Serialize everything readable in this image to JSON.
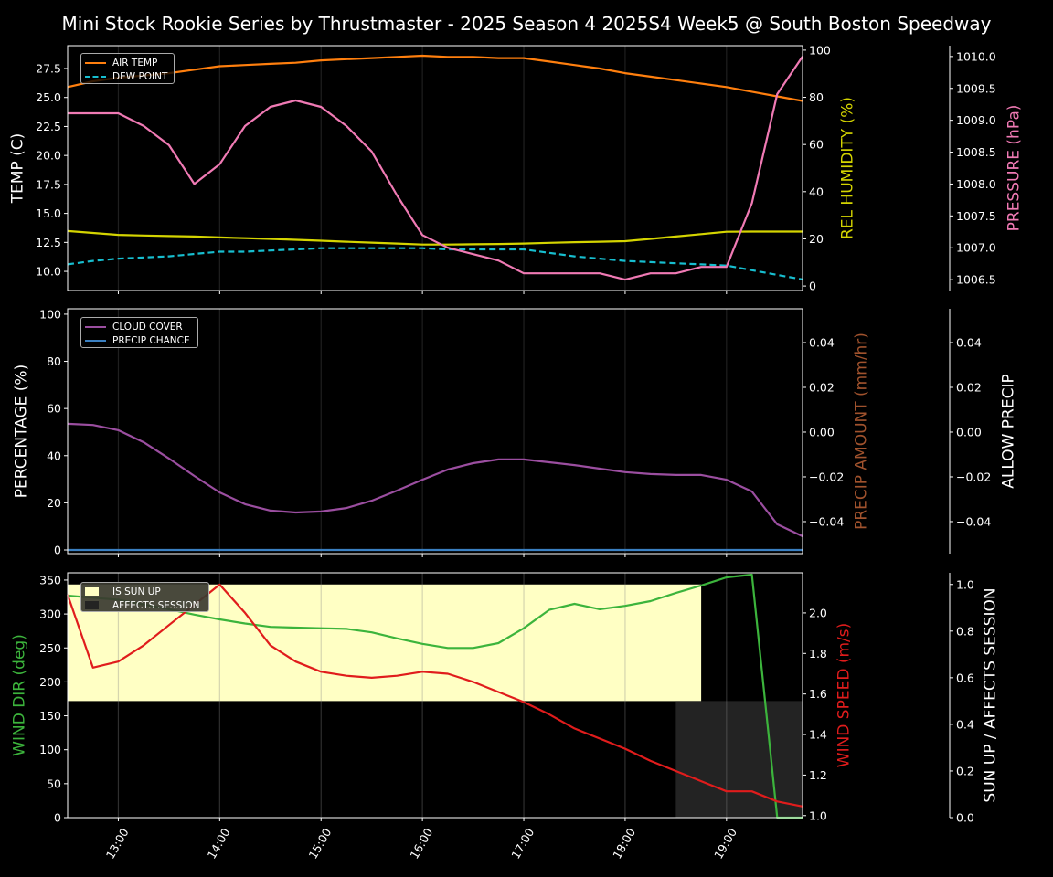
{
  "chart_data": {
    "title": "Mini Stock Rookie Series by Thrustmaster - 2025 Season 4 2025S4 Week5 @ South Boston Speedway",
    "type": "line",
    "x": [
      "12:30",
      "12:45",
      "13:00",
      "13:15",
      "13:30",
      "13:45",
      "14:00",
      "14:15",
      "14:30",
      "14:45",
      "15:00",
      "15:15",
      "15:30",
      "15:45",
      "16:00",
      "16:15",
      "16:30",
      "16:45",
      "17:00",
      "17:15",
      "17:30",
      "17:45",
      "18:00",
      "18:15",
      "18:30",
      "18:45",
      "19:00",
      "19:15",
      "19:30",
      "19:45"
    ],
    "xlim": [
      "12:30",
      "19:45"
    ],
    "xticks": [
      "13:00",
      "14:00",
      "15:00",
      "16:00",
      "17:00",
      "18:00",
      "19:00"
    ],
    "grid": "vertical at hours",
    "background": "#000000",
    "axes": [
      {
        "id": "temp",
        "panel": 0,
        "side": "left",
        "label": "TEMP (C)",
        "color": "#ffffff",
        "ylim": [
          8.35,
          29.47
        ],
        "ticks": [
          10,
          12.5,
          15,
          17.5,
          20,
          22.5,
          25,
          27.5
        ],
        "tick_labels": [
          "10.0",
          "12.5",
          "15.0",
          "17.5",
          "20.0",
          "22.5",
          "25.0",
          "27.5"
        ]
      },
      {
        "id": "hum",
        "panel": 0,
        "side": "right",
        "label": "REL HUMIDITY (%)",
        "color": "#d4d400",
        "ylim": [
          -1.9,
          101.9
        ],
        "ticks": [
          0,
          20,
          40,
          60,
          80,
          100
        ],
        "tick_labels": [
          "0",
          "20",
          "40",
          "60",
          "80",
          "100"
        ]
      },
      {
        "id": "pres",
        "panel": 0,
        "side": "far",
        "label": "PRESSURE (hPa)",
        "color": "#f07ab4",
        "ylim": [
          1006.33,
          1010.17
        ],
        "ticks": [
          1006.5,
          1007,
          1007.5,
          1008,
          1008.5,
          1009,
          1009.5,
          1010
        ],
        "tick_labels": [
          "1006.5",
          "1007.0",
          "1007.5",
          "1008.0",
          "1008.5",
          "1009.0",
          "1009.5",
          "1010.0"
        ]
      },
      {
        "id": "pct",
        "panel": 1,
        "side": "left",
        "label": "PERCENTAGE (%)",
        "color": "#ffffff",
        "ylim": [
          -1.55,
          102.3
        ],
        "ticks": [
          0,
          20,
          40,
          60,
          80,
          100
        ],
        "tick_labels": [
          "0",
          "20",
          "40",
          "60",
          "80",
          "100"
        ]
      },
      {
        "id": "precip",
        "panel": 1,
        "side": "right",
        "label": "PRECIP AMOUNT (mm/hr)",
        "color": "#a0522d",
        "ylim": [
          -0.0543,
          0.0551
        ],
        "ticks": [
          -0.04,
          -0.02,
          0,
          0.02,
          0.04
        ],
        "tick_labels": [
          "−0.04",
          "−0.02",
          "0.00",
          "0.02",
          "0.04"
        ]
      },
      {
        "id": "allow",
        "panel": 1,
        "side": "far",
        "label": "ALLOW PRECIP",
        "color": "#ffffff",
        "ylim": [
          -0.0543,
          0.0551
        ],
        "ticks": [
          -0.04,
          -0.02,
          0,
          0.02,
          0.04
        ],
        "tick_labels": [
          "−0.04",
          "−0.02",
          "0.00",
          "0.02",
          "0.04"
        ]
      },
      {
        "id": "wdir",
        "panel": 2,
        "side": "left",
        "label": "WIND DIR (deg)",
        "color": "#3cb43c",
        "ylim": [
          0,
          360.7
        ],
        "ticks": [
          0,
          50,
          100,
          150,
          200,
          250,
          300,
          350
        ],
        "tick_labels": [
          "0",
          "50",
          "100",
          "150",
          "200",
          "250",
          "300",
          "350"
        ]
      },
      {
        "id": "wspd",
        "panel": 2,
        "side": "right",
        "label": "WIND SPEED (m/s)",
        "color": "#e01c1c",
        "ylim": [
          0.99,
          2.198
        ],
        "ticks": [
          1,
          1.2,
          1.4,
          1.6,
          1.8,
          2
        ],
        "tick_labels": [
          "1.0",
          "1.2",
          "1.4",
          "1.6",
          "1.8",
          "2.0"
        ]
      },
      {
        "id": "sun",
        "panel": 2,
        "side": "far",
        "label": "SUN UP / AFFECTS SESSION",
        "color": "#ffffff",
        "ylim": [
          0,
          1.05
        ],
        "ticks": [
          0,
          0.2,
          0.4,
          0.6,
          0.8,
          1
        ],
        "tick_labels": [
          "0.0",
          "0.2",
          "0.4",
          "0.6",
          "0.8",
          "1.0"
        ]
      }
    ],
    "series": [
      {
        "name": "AIR TEMP",
        "axis": "temp",
        "color": "#ff7f0e",
        "dash": false,
        "values": [
          25.9,
          26.4,
          26.7,
          26.9,
          27.1,
          27.4,
          27.7,
          27.8,
          27.9,
          28.0,
          28.2,
          28.3,
          28.4,
          28.5,
          28.6,
          28.5,
          28.5,
          28.4,
          28.4,
          28.1,
          27.8,
          27.5,
          27.1,
          26.8,
          26.5,
          26.2,
          25.9,
          25.5,
          25.1,
          24.7
        ]
      },
      {
        "name": "DEW POINT",
        "axis": "temp",
        "color": "#17becf",
        "dash": true,
        "values": [
          10.6,
          10.9,
          11.1,
          11.2,
          11.3,
          11.5,
          11.7,
          11.7,
          11.8,
          11.9,
          12.0,
          12.0,
          12.0,
          12.0,
          12.0,
          11.9,
          11.9,
          11.9,
          11.9,
          11.6,
          11.3,
          11.1,
          10.9,
          10.8,
          10.7,
          10.6,
          10.5,
          10.1,
          9.7,
          9.3
        ]
      },
      {
        "axis": "hum",
        "color": "#d4d400",
        "dash": false,
        "values": [
          23.3,
          22.5,
          21.7,
          21.4,
          21.2,
          21.0,
          20.6,
          20.3,
          20.0,
          19.6,
          19.2,
          18.8,
          18.4,
          18.0,
          17.6,
          17.6,
          17.7,
          17.8,
          18.0,
          18.3,
          18.6,
          18.8,
          19.0,
          20.0,
          21.0,
          22.0,
          23.0,
          23.1,
          23.1,
          23.1
        ]
      },
      {
        "axis": "pres",
        "color": "#f07ab4",
        "dash": false,
        "values": [
          1009.11,
          1009.11,
          1009.11,
          1008.91,
          1008.61,
          1008.0,
          1008.31,
          1008.91,
          1009.21,
          1009.31,
          1009.21,
          1008.91,
          1008.51,
          1007.82,
          1007.2,
          1007.0,
          1006.9,
          1006.8,
          1006.6,
          1006.6,
          1006.6,
          1006.6,
          1006.5,
          1006.6,
          1006.6,
          1006.7,
          1006.7,
          1007.7,
          1009.41,
          1010.0
        ]
      },
      {
        "name": "CLOUD COVER",
        "axis": "pct",
        "color": "#9b4ea0",
        "dash": false,
        "values": [
          53.5,
          53.0,
          50.8,
          45.7,
          38.8,
          31.4,
          24.4,
          19.4,
          16.7,
          15.9,
          16.3,
          17.8,
          20.9,
          25.2,
          29.8,
          34.1,
          36.8,
          38.4,
          38.4,
          37.2,
          36.0,
          34.5,
          33.0,
          32.2,
          31.8,
          31.8,
          29.8,
          24.8,
          10.9,
          5.8
        ]
      },
      {
        "name": "PRECIP CHANCE",
        "axis": "pct",
        "color": "#3a7fc1",
        "dash": false,
        "values": [
          0,
          0,
          0,
          0,
          0,
          0,
          0,
          0,
          0,
          0,
          0,
          0,
          0,
          0,
          0,
          0,
          0,
          0,
          0,
          0,
          0,
          0,
          0,
          0,
          0,
          0,
          0,
          0,
          0,
          0
        ]
      },
      {
        "axis": "wdir",
        "color": "#3cb43c",
        "dash": false,
        "values": [
          327,
          324,
          321,
          314,
          307,
          299,
          292,
          286,
          281,
          280,
          279,
          278,
          273,
          264,
          256,
          250,
          250,
          257,
          279,
          306,
          315,
          307,
          312,
          319,
          331,
          342,
          354,
          358,
          0,
          0
        ]
      },
      {
        "axis": "wspd",
        "color": "#e01c1c",
        "dash": false,
        "values": [
          2.09,
          1.73,
          1.76,
          1.84,
          1.94,
          2.04,
          2.14,
          2.0,
          1.84,
          1.76,
          1.71,
          1.69,
          1.68,
          1.69,
          1.71,
          1.7,
          1.66,
          1.61,
          1.56,
          1.5,
          1.43,
          1.38,
          1.33,
          1.27,
          1.22,
          1.17,
          1.12,
          1.12,
          1.07,
          1.045
        ]
      }
    ],
    "bands": [
      {
        "name": "IS SUN UP",
        "axis": "sun",
        "color": "#ffffc4",
        "x_start": "12:30",
        "x_end": "18:45",
        "y_range": [
          0.5,
          1.0
        ]
      },
      {
        "name": "AFFECTS SESSION",
        "axis": "sun",
        "color": "#232323",
        "x_start": "18:30",
        "x_end": "19:45",
        "y_range": [
          0,
          0.5
        ]
      }
    ],
    "legends": [
      {
        "panel": 0,
        "placement": "upper-left",
        "entries": [
          "AIR TEMP",
          "DEW POINT"
        ]
      },
      {
        "panel": 1,
        "placement": "upper-left",
        "entries": [
          "CLOUD COVER",
          "PRECIP CHANCE"
        ]
      },
      {
        "panel": 2,
        "placement": "upper-left",
        "entries": [
          "IS SUN UP",
          "AFFECTS SESSION"
        ]
      }
    ]
  }
}
